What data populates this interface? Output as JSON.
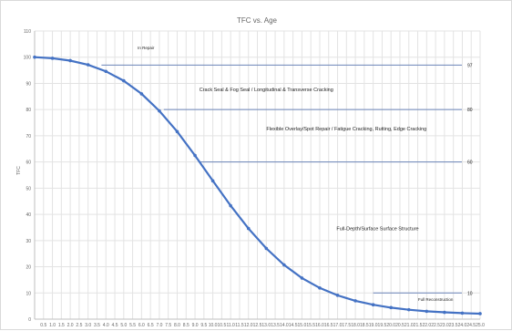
{
  "chart_data": {
    "type": "line",
    "title": "TFC vs. Age",
    "xlabel": "",
    "ylabel": "TFC",
    "xlim": [
      0,
      50
    ],
    "ylim": [
      0,
      110
    ],
    "grid": true,
    "x_ticks": [
      1,
      2,
      3,
      4,
      5,
      6,
      7,
      8,
      9,
      10,
      11,
      12,
      13,
      14,
      15,
      16,
      17,
      18,
      19,
      20,
      21,
      22,
      23,
      24,
      25,
      26,
      27,
      28,
      29,
      30,
      31,
      32,
      33,
      34,
      35,
      36,
      37,
      38,
      39,
      40,
      41,
      42,
      43,
      44,
      45,
      46,
      47,
      48,
      49,
      50
    ],
    "x_tick_labels": [
      "0.5",
      "1.0",
      "1.5",
      "2.0",
      "2.5",
      "3.0",
      "3.5",
      "4.0",
      "4.5",
      "5.0",
      "5.5",
      "6.0",
      "6.5",
      "7.0",
      "7.5",
      "8.0",
      "8.5",
      "9.0",
      "9.5",
      "10.0",
      "10.5",
      "11.0",
      "11.5",
      "12.0",
      "12.5",
      "13.0",
      "13.5",
      "14.0",
      "14.5",
      "15.0",
      "15.5",
      "16.0",
      "16.5",
      "17.0",
      "17.5",
      "18.0",
      "18.5",
      "19.0",
      "19.5",
      "20.0",
      "20.5",
      "21.0",
      "21.5",
      "22.0",
      "22.5",
      "23.0",
      "23.5",
      "24.0",
      "24.5",
      "25.0"
    ],
    "y_ticks": [
      0,
      10,
      20,
      30,
      40,
      50,
      60,
      70,
      80,
      90,
      100,
      110
    ],
    "series": [
      {
        "x": [
          0,
          2,
          4,
          6,
          8,
          10,
          12,
          14,
          16,
          18,
          20,
          22,
          24,
          26,
          28,
          30,
          32,
          34,
          36,
          38,
          40,
          42,
          44,
          46,
          48,
          50
        ],
        "values": [
          100,
          99.6,
          98.7,
          97.1,
          94.6,
          91.0,
          86.0,
          79.5,
          71.6,
          62.5,
          52.8,
          43.3,
          34.6,
          27.0,
          20.7,
          15.7,
          11.9,
          9.1,
          7.0,
          5.5,
          4.4,
          3.6,
          3.0,
          2.6,
          2.3,
          2.1
        ]
      }
    ],
    "reference_lines": [
      {
        "y": 97,
        "x_start": 7.5,
        "label": "97"
      },
      {
        "y": 80,
        "x_start": 14.5,
        "label": "80"
      },
      {
        "y": 60,
        "x_start": 18.5,
        "label": "60"
      },
      {
        "y": 10,
        "x_start": 38,
        "label": "10"
      }
    ],
    "annotations": [
      {
        "text": "In Repair",
        "x": 12.5,
        "y": 103
      },
      {
        "text": "Crack Seal & Fog Seal / Longitudinal & Transverse Cracking",
        "x": 26,
        "y": 87
      },
      {
        "text": "Flexible Overlay/Spot Repair / Fatigue Cracking, Rutting, Edge Cracking",
        "x": 35,
        "y": 72
      },
      {
        "text": "Full-Depth/Surface Surface Structure",
        "x": 38.5,
        "y": 34
      },
      {
        "text": "Full Reconstruction",
        "x": 45,
        "y": 7
      }
    ]
  },
  "colors": {
    "series": "#4472c4",
    "reference": "#6b84b8",
    "grid": "#e3e3e3"
  }
}
